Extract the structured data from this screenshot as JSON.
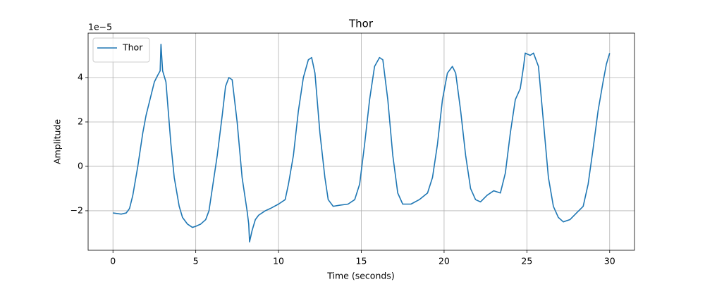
{
  "chart_data": {
    "type": "line",
    "title": "Thor",
    "x_label": "Time (seconds)",
    "y_label": "Amplitude",
    "y_offset_label": "1e−5",
    "x": [
      0,
      0.5,
      0.8,
      1.0,
      1.2,
      1.5,
      1.8,
      2.0,
      2.3,
      2.5,
      2.7,
      2.85,
      2.9,
      3.0,
      3.2,
      3.5,
      3.7,
      4.0,
      4.2,
      4.5,
      4.8,
      5.0,
      5.3,
      5.6,
      5.8,
      6.0,
      6.3,
      6.6,
      6.8,
      7.0,
      7.2,
      7.5,
      7.8,
      8.0,
      8.1,
      8.2,
      8.25,
      8.4,
      8.6,
      8.8,
      9.2,
      9.5,
      10.0,
      10.4,
      10.6,
      10.9,
      11.2,
      11.5,
      11.8,
      12.0,
      12.2,
      12.5,
      12.8,
      13.0,
      13.3,
      13.7,
      14.2,
      14.6,
      14.9,
      15.2,
      15.5,
      15.8,
      16.1,
      16.3,
      16.6,
      16.9,
      17.2,
      17.5,
      18.0,
      18.5,
      19.0,
      19.3,
      19.6,
      19.9,
      20.2,
      20.5,
      20.7,
      21.0,
      21.3,
      21.6,
      21.9,
      22.2,
      22.6,
      23.0,
      23.4,
      23.7,
      24.0,
      24.3,
      24.6,
      24.8,
      24.9,
      25.2,
      25.4,
      25.7,
      26.0,
      26.3,
      26.6,
      26.9,
      27.2,
      27.6,
      28.0,
      28.4,
      28.7,
      29.0,
      29.3,
      29.6,
      29.8,
      30.0
    ],
    "series": [
      {
        "name": "Thor",
        "color": "#1f77b4",
        "values": [
          -2.1,
          -2.15,
          -2.1,
          -1.9,
          -1.3,
          0,
          1.5,
          2.3,
          3.2,
          3.8,
          4.1,
          4.3,
          5.5,
          4.3,
          3.8,
          1.0,
          -0.5,
          -1.8,
          -2.3,
          -2.6,
          -2.75,
          -2.7,
          -2.6,
          -2.4,
          -2.0,
          -1.0,
          0.5,
          2.3,
          3.6,
          4.0,
          3.9,
          2.0,
          -0.5,
          -1.5,
          -2.0,
          -2.6,
          -3.4,
          -2.9,
          -2.4,
          -2.2,
          -2.0,
          -1.9,
          -1.7,
          -1.5,
          -0.8,
          0.5,
          2.5,
          4.0,
          4.8,
          4.9,
          4.2,
          1.5,
          -0.5,
          -1.5,
          -1.8,
          -1.75,
          -1.7,
          -1.5,
          -0.8,
          1.0,
          3.0,
          4.5,
          4.9,
          4.8,
          3.0,
          0.5,
          -1.2,
          -1.7,
          -1.7,
          -1.5,
          -1.2,
          -0.5,
          1.0,
          3.0,
          4.2,
          4.5,
          4.2,
          2.5,
          0.5,
          -1.0,
          -1.5,
          -1.6,
          -1.3,
          -1.1,
          -1.2,
          -0.3,
          1.5,
          3.0,
          3.5,
          4.5,
          5.1,
          5.0,
          5.1,
          4.5,
          2.0,
          -0.5,
          -1.8,
          -2.3,
          -2.5,
          -2.4,
          -2.1,
          -1.8,
          -0.8,
          0.8,
          2.5,
          3.8,
          4.6,
          5.1
        ]
      }
    ],
    "xlim": [
      -1.5,
      31.5
    ],
    "xticks": [
      0,
      5,
      10,
      15,
      20,
      25,
      30
    ],
    "ylim": [
      -3.78,
      6.0
    ],
    "yticks": [
      {
        "value": -2,
        "label": "−2"
      },
      0,
      2,
      4
    ],
    "grid": true,
    "legend": "upper left"
  }
}
